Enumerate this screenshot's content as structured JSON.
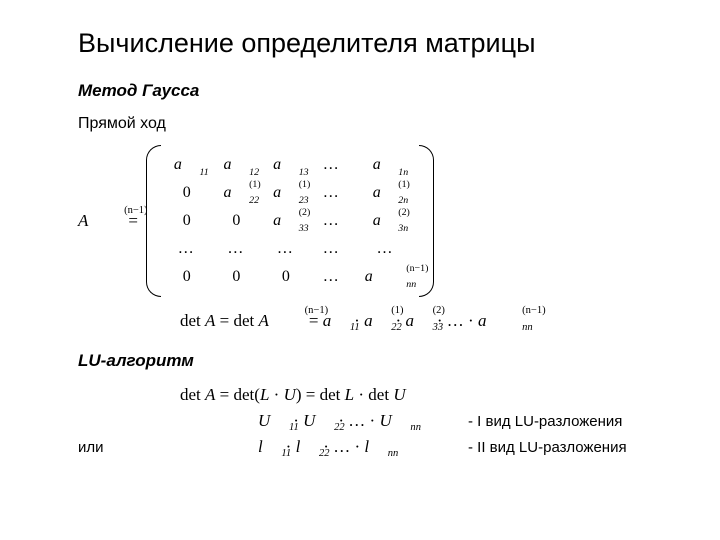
{
  "title": "Вычисление определителя матрицы",
  "gauss": {
    "heading": "Метод Гаусса",
    "sub": "Прямой ход",
    "lhs_base": "A",
    "lhs_sup": "(n−1)",
    "eq": " = ",
    "matrix": [
      [
        {
          "b": "a",
          "s": "11"
        },
        {
          "b": "a",
          "s": "12"
        },
        {
          "b": "a",
          "s": "13"
        },
        {
          "dots": "…"
        },
        {
          "b": "a",
          "s": "1n"
        }
      ],
      [
        {
          "zero": "0"
        },
        {
          "b": "a",
          "s": "22",
          "p": "(1)"
        },
        {
          "b": "a",
          "s": "23",
          "p": "(1)"
        },
        {
          "dots": "…"
        },
        {
          "b": "a",
          "s": "2n",
          "p": "(1)"
        }
      ],
      [
        {
          "zero": "0"
        },
        {
          "zero": "0"
        },
        {
          "b": "a",
          "s": "33",
          "p": "(2)"
        },
        {
          "dots": "…"
        },
        {
          "b": "a",
          "s": "3n",
          "p": "(2)"
        }
      ],
      [
        {
          "dots": "…"
        },
        {
          "dots": "…"
        },
        {
          "dots": "…"
        },
        {
          "dots": "…"
        },
        {
          "dots": "…"
        }
      ],
      [
        {
          "zero": "0"
        },
        {
          "zero": "0"
        },
        {
          "zero": "0"
        },
        {
          "dots": "…"
        },
        {
          "b": "a",
          "s": "nn",
          "p": "(n−1)"
        }
      ]
    ],
    "det_prefix_rm": "det ",
    "det_A_it": "A",
    "det_eq1": " = ",
    "det_rm2": "det ",
    "det_A2_it": "A",
    "det_A2_sup": "(n−1)",
    "det_eq2": " = ",
    "det_terms": [
      {
        "b": "a",
        "s": "11"
      },
      {
        "b": "a",
        "s": "22",
        "p": "(1)"
      },
      {
        "b": "a",
        "s": "33",
        "p": "(2)"
      },
      {
        "dots": "…"
      },
      {
        "b": "a",
        "s": "nn",
        "p": "(n−1)"
      }
    ],
    "cdot": " · "
  },
  "lu": {
    "heading": "LU-алгоритм",
    "line1_rm1": "det ",
    "line1_A": "A",
    "line1_eq1": " = ",
    "line1_rm2": "det(",
    "line1_L": "L",
    "line1_cd": " · ",
    "line1_U": "U",
    "line1_rp": ") = ",
    "line1_rm3": "det ",
    "line1_rm4": " · det ",
    "rows": [
      {
        "left": "",
        "terms": [
          {
            "b": "U",
            "s": "11"
          },
          {
            "b": "U",
            "s": "22"
          },
          {
            "dots": "…"
          },
          {
            "b": "U",
            "s": "nn"
          }
        ],
        "label": "-  I вид LU-разложения"
      },
      {
        "left": "или",
        "terms": [
          {
            "b": "l",
            "s": "11"
          },
          {
            "b": "l",
            "s": "22"
          },
          {
            "dots": "…"
          },
          {
            "b": "l",
            "s": "nn"
          }
        ],
        "label": "-  II вид LU-разложения"
      }
    ]
  },
  "colors": {
    "fg": "#000000",
    "bg": "#ffffff"
  }
}
